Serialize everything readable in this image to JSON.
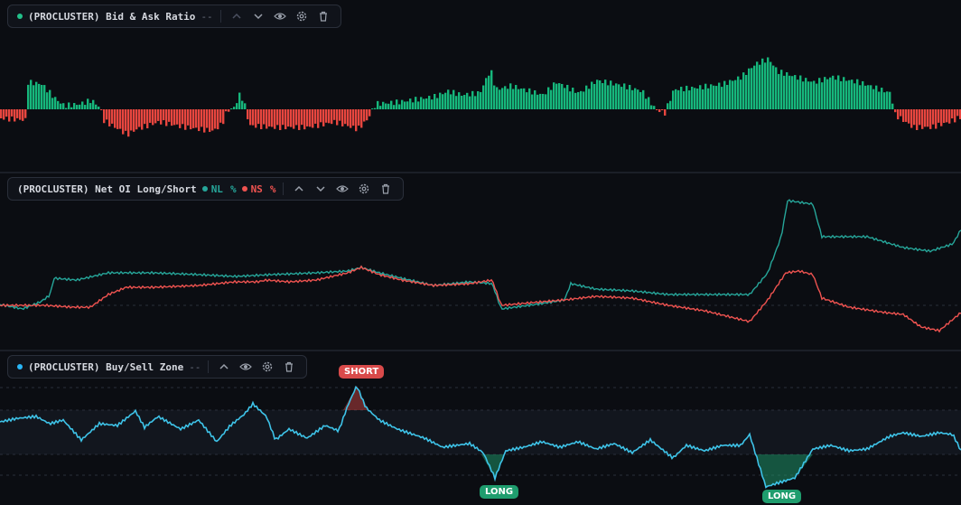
{
  "panes": [
    {
      "id": "bid-ask",
      "title": "(PROCLUSTER) Bid & Ask Ratio",
      "value": "--",
      "dot_color": "#22c08a"
    },
    {
      "id": "net-oi",
      "title": "(PROCLUSTER) Net OI Long/Short",
      "series": [
        {
          "name": "NL",
          "unit": "%",
          "color": "#26a69a"
        },
        {
          "name": "NS",
          "unit": "%",
          "color": "#ef5350"
        }
      ]
    },
    {
      "id": "buy-sell",
      "title": "(PROCLUSTER) Buy/Sell Zone",
      "value": "--",
      "dot_color": "#29b6f6"
    }
  ],
  "signals": {
    "short_label": "SHORT",
    "long_label_1": "LONG",
    "long_label_2": "LONG"
  },
  "colors": {
    "background": "#0b0d12",
    "positive": "#16b77c",
    "negative": "#e8463f",
    "nl_line": "#26a69a",
    "ns_line": "#ef5350",
    "zone_line": "#3ec3e8",
    "short_tag": "#d94a4a",
    "long_tag": "#1f9d6e"
  },
  "icons": [
    "chevron-up-icon",
    "chevron-down-icon",
    "eye-icon",
    "gear-icon",
    "trash-icon"
  ]
}
